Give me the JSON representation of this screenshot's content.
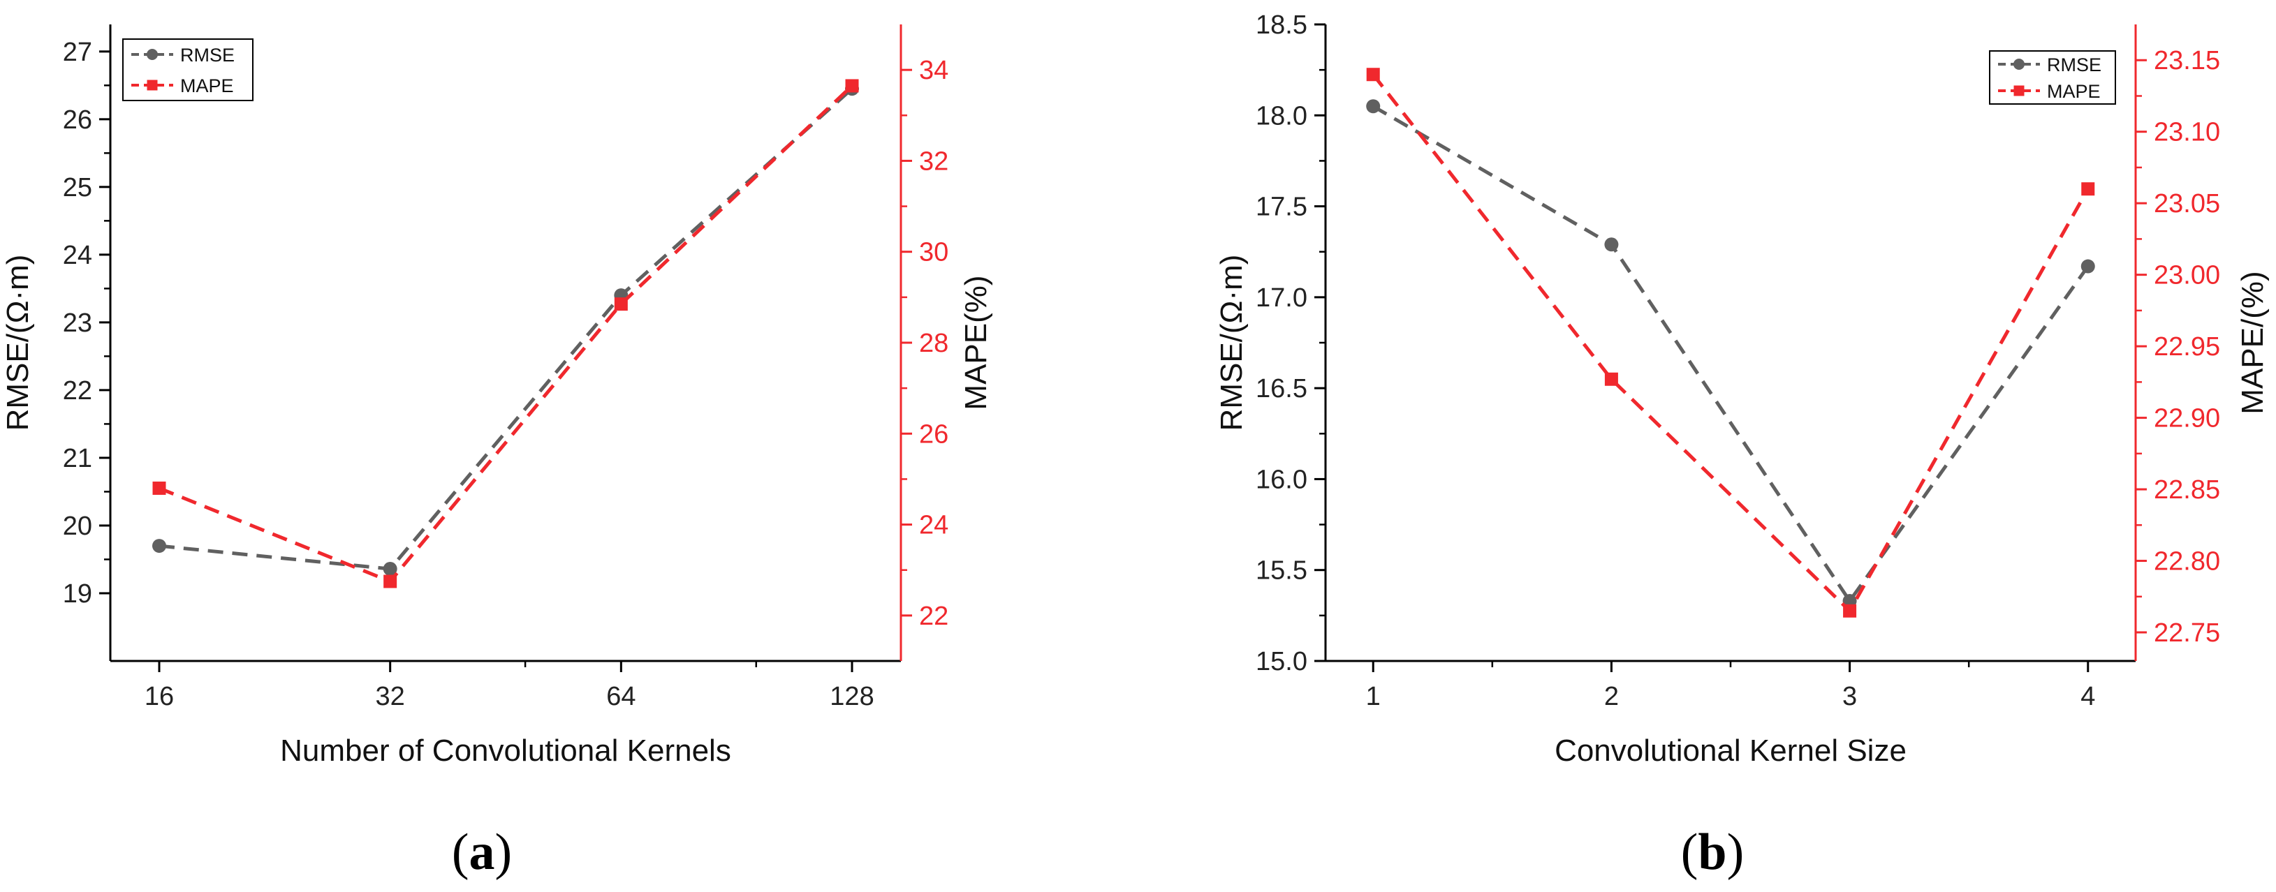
{
  "chart_data": [
    {
      "type": "line",
      "panel_label": {
        "open": "(",
        "letter": "a",
        "close": ")"
      },
      "xlabel": "Number of Convolutional Kernels",
      "ylabel_left": "RMSE/(Ω·m)",
      "ylabel_right": "MAPE(%)",
      "x_scale": "log2",
      "x_ticks": [
        16,
        32,
        64,
        128
      ],
      "x_tick_labels": [
        "16",
        "32",
        "64",
        "128"
      ],
      "ylim_left": [
        18.0,
        27.4
      ],
      "yticks_left": [
        19,
        20,
        21,
        22,
        23,
        24,
        25,
        26,
        27
      ],
      "ylim_right": [
        21.0,
        35.0
      ],
      "yticks_right": [
        22,
        24,
        26,
        28,
        30,
        32,
        34
      ],
      "legend_position": "top-left",
      "series": [
        {
          "name": "RMSE",
          "axis": "left",
          "x": [
            16,
            32,
            64,
            128
          ],
          "values": [
            19.7,
            19.36,
            23.4,
            26.45
          ],
          "color": "#606060",
          "marker": "circle",
          "line": "dashed"
        },
        {
          "name": "MAPE",
          "axis": "right",
          "x": [
            16,
            32,
            64,
            128
          ],
          "values": [
            24.8,
            22.75,
            28.85,
            33.65
          ],
          "color": "#f0282d",
          "marker": "square",
          "line": "dashed"
        }
      ]
    },
    {
      "type": "line",
      "panel_label": {
        "open": "(",
        "letter": "b",
        "close": ")"
      },
      "xlabel": "Convolutional Kernel Size",
      "ylabel_left": "RMSE/(Ω·m)",
      "ylabel_right": "MAPE/(%)",
      "x_scale": "linear",
      "xlim": [
        0.8,
        4.2
      ],
      "x_ticks": [
        1,
        2,
        3,
        4
      ],
      "x_tick_labels": [
        "1",
        "2",
        "3",
        "4"
      ],
      "ylim_left": [
        15.0,
        18.5
      ],
      "yticks_left": [
        15.0,
        15.5,
        16.0,
        16.5,
        17.0,
        17.5,
        18.0,
        18.5
      ],
      "ytick_labels_left": [
        "15.0",
        "15.5",
        "16.0",
        "16.5",
        "17.0",
        "17.5",
        "18.0",
        "18.5"
      ],
      "ylim_right": [
        22.73,
        23.175
      ],
      "yticks_right": [
        22.75,
        22.8,
        22.85,
        22.9,
        22.95,
        23.0,
        23.05,
        23.1,
        23.15
      ],
      "ytick_labels_right": [
        "22.75",
        "22.80",
        "22.85",
        "22.90",
        "22.95",
        "23.00",
        "23.05",
        "23.10",
        "23.15"
      ],
      "legend_position": "top-right",
      "series": [
        {
          "name": "RMSE",
          "axis": "left",
          "x": [
            1,
            2,
            3,
            4
          ],
          "values": [
            18.05,
            17.29,
            15.33,
            17.17
          ],
          "color": "#606060",
          "marker": "circle",
          "line": "dashed"
        },
        {
          "name": "MAPE",
          "axis": "right",
          "x": [
            1,
            2,
            3,
            4
          ],
          "values": [
            23.14,
            22.927,
            22.765,
            23.06
          ],
          "color": "#f0282d",
          "marker": "square",
          "line": "dashed"
        }
      ]
    }
  ]
}
